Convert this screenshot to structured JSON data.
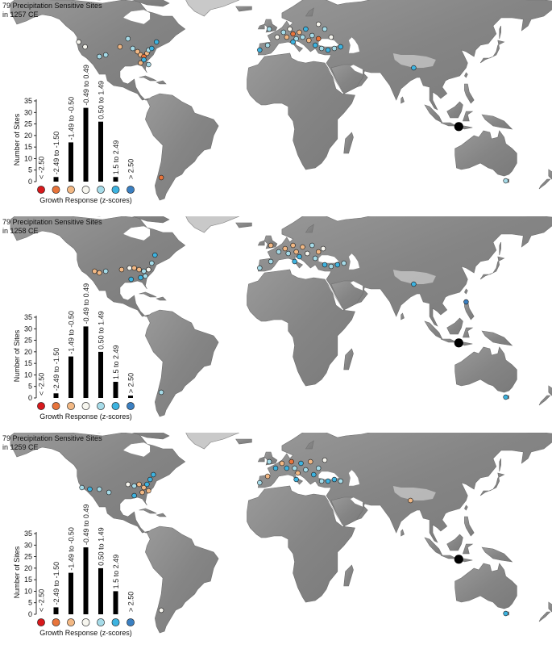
{
  "panels": [
    {
      "title_line1": "79 Precipitation Sensitive Sites",
      "title_line2": "in 1257 CE",
      "sites": [
        {
          "lon": -123,
          "lat": 44,
          "cat": 3
        },
        {
          "lon": -119,
          "lat": 41,
          "cat": 3
        },
        {
          "lon": -110,
          "lat": 35,
          "cat": 4
        },
        {
          "lon": -106,
          "lat": 36,
          "cat": 4
        },
        {
          "lon": -97,
          "lat": 41,
          "cat": 2
        },
        {
          "lon": -92,
          "lat": 46,
          "cat": 4
        },
        {
          "lon": -89,
          "lat": 40,
          "cat": 4
        },
        {
          "lon": -86,
          "lat": 38,
          "cat": 2
        },
        {
          "lon": -84,
          "lat": 36,
          "cat": 2
        },
        {
          "lon": -82,
          "lat": 35,
          "cat": 1
        },
        {
          "lon": -80,
          "lat": 37,
          "cat": 2
        },
        {
          "lon": -79,
          "lat": 39,
          "cat": 4
        },
        {
          "lon": -77,
          "lat": 40,
          "cat": 5
        },
        {
          "lon": -82,
          "lat": 33,
          "cat": 5
        },
        {
          "lon": -84,
          "lat": 31,
          "cat": 2
        },
        {
          "lon": -74,
          "lat": 44,
          "cat": 5
        },
        {
          "lon": -79,
          "lat": 30,
          "cat": 4
        },
        {
          "lon": -71,
          "lat": -40,
          "cat": 1
        },
        {
          "lon": -9,
          "lat": 39,
          "cat": 5
        },
        {
          "lon": -4,
          "lat": 42,
          "cat": 4
        },
        {
          "lon": -3,
          "lat": 52,
          "cat": 4
        },
        {
          "lon": 2,
          "lat": 47,
          "cat": 3
        },
        {
          "lon": 6,
          "lat": 50,
          "cat": 4
        },
        {
          "lon": 8,
          "lat": 47,
          "cat": 2
        },
        {
          "lon": 10,
          "lat": 52,
          "cat": 3
        },
        {
          "lon": 12,
          "lat": 49,
          "cat": 1
        },
        {
          "lon": 14,
          "lat": 46,
          "cat": 4
        },
        {
          "lon": 16,
          "lat": 50,
          "cat": 2
        },
        {
          "lon": 18,
          "lat": 47,
          "cat": 4
        },
        {
          "lon": 20,
          "lat": 52,
          "cat": 5
        },
        {
          "lon": 22,
          "lat": 45,
          "cat": 2
        },
        {
          "lon": 24,
          "lat": 48,
          "cat": 4
        },
        {
          "lon": 26,
          "lat": 42,
          "cat": 5
        },
        {
          "lon": 28,
          "lat": 46,
          "cat": 1
        },
        {
          "lon": 12,
          "lat": 44,
          "cat": 5
        },
        {
          "lon": 30,
          "lat": 40,
          "cat": 4
        },
        {
          "lon": 34,
          "lat": 39,
          "cat": 5
        },
        {
          "lon": 38,
          "lat": 40,
          "cat": 4
        },
        {
          "lon": 42,
          "lat": 41,
          "cat": 5
        },
        {
          "lon": 36,
          "lat": 47,
          "cat": 3
        },
        {
          "lon": 28,
          "lat": 55,
          "cat": 3
        },
        {
          "lon": 32,
          "lat": 52,
          "cat": 4
        },
        {
          "lon": 88,
          "lat": 28,
          "cat": 5
        },
        {
          "lon": 146,
          "lat": -42,
          "cat": 4
        }
      ]
    },
    {
      "title_line1": "79 Precipitation Sensitive Sites",
      "title_line2": "in 1258 CE",
      "sites": [
        {
          "lon": -113,
          "lat": 36,
          "cat": 2
        },
        {
          "lon": -110,
          "lat": 35,
          "cat": 2
        },
        {
          "lon": -106,
          "lat": 36,
          "cat": 4
        },
        {
          "lon": -96,
          "lat": 37,
          "cat": 2
        },
        {
          "lon": -91,
          "lat": 38,
          "cat": 3
        },
        {
          "lon": -88,
          "lat": 38,
          "cat": 2
        },
        {
          "lon": -85,
          "lat": 37,
          "cat": 2
        },
        {
          "lon": -82,
          "lat": 36,
          "cat": 4
        },
        {
          "lon": -79,
          "lat": 37,
          "cat": 3
        },
        {
          "lon": -77,
          "lat": 41,
          "cat": 4
        },
        {
          "lon": -75,
          "lat": 46,
          "cat": 5
        },
        {
          "lon": -84,
          "lat": 32,
          "cat": 5
        },
        {
          "lon": -90,
          "lat": 31,
          "cat": 5
        },
        {
          "lon": -81,
          "lat": 33,
          "cat": 4
        },
        {
          "lon": -71,
          "lat": -39,
          "cat": 4
        },
        {
          "lon": -9,
          "lat": 38,
          "cat": 4
        },
        {
          "lon": -2,
          "lat": 42,
          "cat": 4
        },
        {
          "lon": -2,
          "lat": 52,
          "cat": 2
        },
        {
          "lon": 3,
          "lat": 48,
          "cat": 4
        },
        {
          "lon": 7,
          "lat": 50,
          "cat": 2
        },
        {
          "lon": 9,
          "lat": 47,
          "cat": 4
        },
        {
          "lon": 12,
          "lat": 52,
          "cat": 2
        },
        {
          "lon": 14,
          "lat": 48,
          "cat": 2
        },
        {
          "lon": 16,
          "lat": 45,
          "cat": 5
        },
        {
          "lon": 18,
          "lat": 51,
          "cat": 2
        },
        {
          "lon": 21,
          "lat": 47,
          "cat": 3
        },
        {
          "lon": 24,
          "lat": 52,
          "cat": 4
        },
        {
          "lon": 26,
          "lat": 44,
          "cat": 4
        },
        {
          "lon": 28,
          "lat": 48,
          "cat": 2
        },
        {
          "lon": 31,
          "lat": 50,
          "cat": 3
        },
        {
          "lon": 13,
          "lat": 42,
          "cat": 5
        },
        {
          "lon": 32,
          "lat": 40,
          "cat": 5
        },
        {
          "lon": 36,
          "lat": 39,
          "cat": 4
        },
        {
          "lon": 40,
          "lat": 40,
          "cat": 5
        },
        {
          "lon": 44,
          "lat": 41,
          "cat": 4
        },
        {
          "lon": 88,
          "lat": 28,
          "cat": 5
        },
        {
          "lon": 121,
          "lat": 17,
          "cat": 6
        },
        {
          "lon": 146,
          "lat": -42,
          "cat": 5
        }
      ]
    },
    {
      "title_line1": "79 Precipitation Sensitive Sites",
      "title_line2": "in 1259 CE",
      "sites": [
        {
          "lon": -121,
          "lat": 36,
          "cat": 4
        },
        {
          "lon": -116,
          "lat": 35,
          "cat": 5
        },
        {
          "lon": -110,
          "lat": 35,
          "cat": 4
        },
        {
          "lon": -104,
          "lat": 33,
          "cat": 4
        },
        {
          "lon": -92,
          "lat": 38,
          "cat": 3
        },
        {
          "lon": -88,
          "lat": 37,
          "cat": 4
        },
        {
          "lon": -85,
          "lat": 38,
          "cat": 2
        },
        {
          "lon": -82,
          "lat": 36,
          "cat": 2
        },
        {
          "lon": -80,
          "lat": 38,
          "cat": 5
        },
        {
          "lon": -78,
          "lat": 41,
          "cat": 5
        },
        {
          "lon": -76,
          "lat": 44,
          "cat": 5
        },
        {
          "lon": -83,
          "lat": 33,
          "cat": 2
        },
        {
          "lon": -79,
          "lat": 34,
          "cat": 2
        },
        {
          "lon": -88,
          "lat": 31,
          "cat": 5
        },
        {
          "lon": -71,
          "lat": -40,
          "cat": 3
        },
        {
          "lon": -9,
          "lat": 39,
          "cat": 4
        },
        {
          "lon": -4,
          "lat": 43,
          "cat": 2
        },
        {
          "lon": -3,
          "lat": 52,
          "cat": 4
        },
        {
          "lon": 1,
          "lat": 48,
          "cat": 5
        },
        {
          "lon": 5,
          "lat": 51,
          "cat": 2
        },
        {
          "lon": 8,
          "lat": 48,
          "cat": 5
        },
        {
          "lon": 11,
          "lat": 52,
          "cat": 1
        },
        {
          "lon": 13,
          "lat": 48,
          "cat": 4
        },
        {
          "lon": 15,
          "lat": 45,
          "cat": 2
        },
        {
          "lon": 17,
          "lat": 51,
          "cat": 5
        },
        {
          "lon": 20,
          "lat": 47,
          "cat": 4
        },
        {
          "lon": 23,
          "lat": 52,
          "cat": 2
        },
        {
          "lon": 25,
          "lat": 44,
          "cat": 5
        },
        {
          "lon": 28,
          "lat": 48,
          "cat": 4
        },
        {
          "lon": 14,
          "lat": 41,
          "cat": 5
        },
        {
          "lon": 30,
          "lat": 40,
          "cat": 4
        },
        {
          "lon": 34,
          "lat": 40,
          "cat": 5
        },
        {
          "lon": 38,
          "lat": 41,
          "cat": 5
        },
        {
          "lon": 42,
          "lat": 40,
          "cat": 4
        },
        {
          "lon": 32,
          "lat": 53,
          "cat": 3
        },
        {
          "lon": 86,
          "lat": 28,
          "cat": 2
        },
        {
          "lon": 146,
          "lat": -42,
          "cat": 5
        }
      ]
    }
  ],
  "volcano": {
    "lon": 116.4,
    "lat": -8.4
  },
  "categories": [
    "< -2.50",
    "-2.49 to -1.50",
    "-1.49 to -0.50",
    "-0.49 to 0.49",
    "0.50 to 1.49",
    "1.5 to 2.49",
    "> 2.50"
  ],
  "category_colors": [
    "#d7191c",
    "#e8743b",
    "#f2b884",
    "#f7f6ef",
    "#a6dbe8",
    "#3db3e0",
    "#3a7fc1"
  ],
  "legend_xlabel": "Growth Response (z-scores)",
  "legend_ylabel": "Number of Sites",
  "legend_yticks": [
    "0",
    "5",
    "10",
    "15",
    "20",
    "25",
    "30",
    "35"
  ],
  "chart_data": [
    {
      "type": "bar",
      "title": "79 Precipitation Sensitive Sites in 1257 CE",
      "categories": [
        "< -2.50",
        "-2.49 to -1.50",
        "-1.49 to -0.50",
        "-0.49 to 0.49",
        "0.50 to 1.49",
        "1.5 to 2.49",
        "> 2.50"
      ],
      "values": [
        0,
        2,
        17,
        32,
        26,
        2,
        0
      ],
      "xlabel": "Growth Response (z-scores)",
      "ylabel": "Number of Sites",
      "ylim": [
        0,
        35
      ]
    },
    {
      "type": "bar",
      "title": "79 Precipitation Sensitive Sites in 1258 CE",
      "categories": [
        "< -2.50",
        "-2.49 to -1.50",
        "-1.49 to -0.50",
        "-0.49 to 0.49",
        "0.50 to 1.49",
        "1.5 to 2.49",
        "> 2.50"
      ],
      "values": [
        0,
        2,
        18,
        31,
        20,
        7,
        1
      ],
      "xlabel": "Growth Response (z-scores)",
      "ylabel": "Number of Sites",
      "ylim": [
        0,
        35
      ]
    },
    {
      "type": "bar",
      "title": "79 Precipitation Sensitive Sites in 1259 CE",
      "categories": [
        "< -2.50",
        "-2.49 to -1.50",
        "-1.49 to -0.50",
        "-0.49 to 0.49",
        "0.50 to 1.49",
        "1.5 to 2.49",
        "> 2.50"
      ],
      "values": [
        0,
        3,
        18,
        29,
        20,
        10,
        0
      ],
      "xlabel": "Growth Response (z-scores)",
      "ylabel": "Number of Sites",
      "ylim": [
        0,
        35
      ]
    }
  ]
}
